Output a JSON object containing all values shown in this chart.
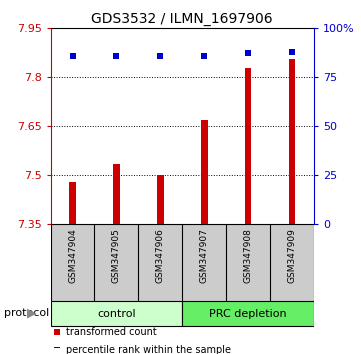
{
  "title": "GDS3532 / ILMN_1697906",
  "samples": [
    "GSM347904",
    "GSM347905",
    "GSM347906",
    "GSM347907",
    "GSM347908",
    "GSM347909"
  ],
  "transformed_counts": [
    7.48,
    7.535,
    7.502,
    7.668,
    7.83,
    7.855
  ],
  "percentile_ranks": [
    86,
    86,
    86,
    86,
    87.5,
    88
  ],
  "ylim_left": [
    7.35,
    7.95
  ],
  "ylim_right": [
    0,
    100
  ],
  "yticks_left": [
    7.35,
    7.5,
    7.65,
    7.8,
    7.95
  ],
  "ytick_labels_left": [
    "7.35",
    "7.5",
    "7.65",
    "7.8",
    "7.95"
  ],
  "yticks_right": [
    0,
    25,
    50,
    75,
    100
  ],
  "ytick_labels_right": [
    "0",
    "25",
    "50",
    "75",
    "100%"
  ],
  "groups": [
    {
      "label": "control",
      "indices": [
        0,
        1,
        2
      ],
      "color": "#ccffcc"
    },
    {
      "label": "PRC depletion",
      "indices": [
        3,
        4,
        5
      ],
      "color": "#66ee66"
    }
  ],
  "bar_color": "#cc0000",
  "marker_color": "#0000cc",
  "bar_width": 0.15,
  "gridline_y": [
    7.5,
    7.65,
    7.8
  ],
  "legend": [
    {
      "color": "#cc0000",
      "label": "transformed count"
    },
    {
      "color": "#0000cc",
      "label": "percentile rank within the sample"
    }
  ],
  "axis_left_color": "#cc0000",
  "axis_right_color": "#0000cc"
}
